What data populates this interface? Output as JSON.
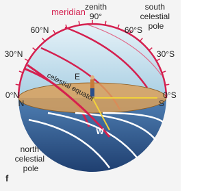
{
  "labels": {
    "meridian": "meridian",
    "zenith": "zenith",
    "zenith_angle": "90°",
    "south_pole": [
      "south",
      "celestial",
      "pole"
    ],
    "lat_60n": "60°N",
    "lat_60s": "60°S",
    "lat_30n": "30°N",
    "lat_30s": "30°S",
    "lat_0n": "0°N",
    "lat_0s": "0°S",
    "north": "N",
    "south": "S",
    "east": "E",
    "west": "W",
    "celestial_equator": "celestial equator",
    "north_pole": [
      "north",
      "celestial",
      "pole"
    ],
    "panel": "f"
  }
}
